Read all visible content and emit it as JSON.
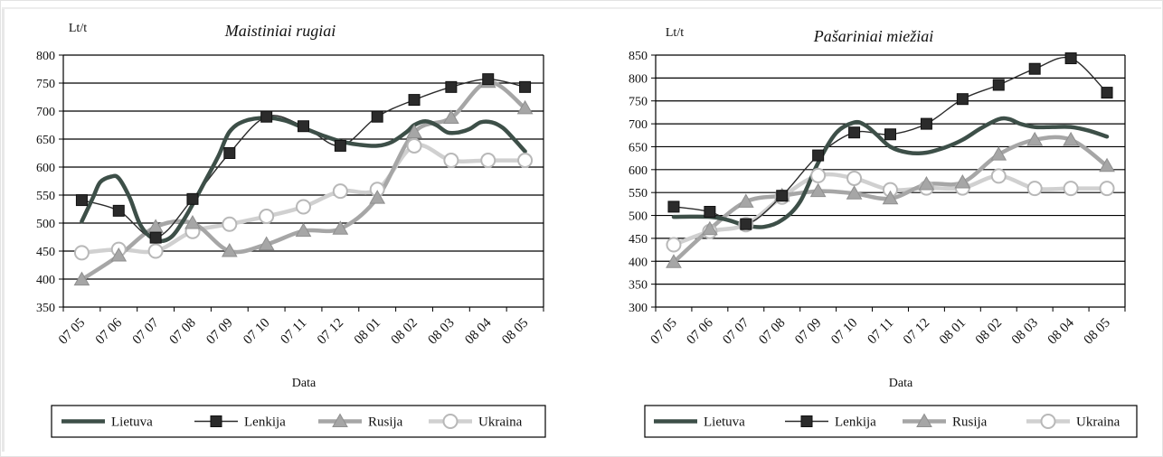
{
  "chart_data": [
    {
      "type": "line",
      "title": "Maistiniai rugiai",
      "ylabel": "Lt/t",
      "xlabel": "Data",
      "ylim": [
        350,
        800
      ],
      "yticks": [
        350,
        400,
        450,
        500,
        550,
        600,
        650,
        700,
        750,
        800
      ],
      "categories": [
        "07 05",
        "07 06",
        "07 07",
        "07 08",
        "07 09",
        "07 10",
        "07 11",
        "07 12",
        "08 01",
        "08 02",
        "08 03",
        "08 04",
        "08 05"
      ],
      "grid": "horizontal",
      "legend": "bottom",
      "series": [
        {
          "name": "Lietuva",
          "color": "#3d4f48",
          "marker": "none",
          "x": [
            0,
            0.3,
            0.5,
            0.8,
            1.0,
            1.3,
            1.6,
            2.0,
            2.4,
            2.8,
            3.3,
            3.7,
            4.0,
            4.4,
            5.0,
            5.5,
            6.0,
            6.5,
            7.0,
            7.5,
            8.0,
            8.4,
            8.8,
            9.0,
            9.3,
            9.6,
            9.9,
            10.2,
            10.5,
            10.8,
            11.1,
            11.4,
            11.7,
            12.0
          ],
          "values": [
            503,
            545,
            573,
            583,
            580,
            545,
            495,
            470,
            474,
            510,
            570,
            620,
            663,
            682,
            688,
            683,
            670,
            657,
            646,
            640,
            638,
            645,
            663,
            675,
            682,
            675,
            662,
            662,
            668,
            680,
            680,
            670,
            650,
            628
          ]
        },
        {
          "name": "Lenkija",
          "color": "#2b2b2b",
          "marker": "square",
          "x": [
            0,
            1,
            2,
            3,
            4,
            5,
            6,
            7,
            8,
            9,
            10,
            11,
            12
          ],
          "values": [
            541,
            522,
            474,
            543,
            625,
            690,
            673,
            638,
            690,
            720,
            743,
            757,
            743
          ]
        },
        {
          "name": "Rusija",
          "color": "#a6a6a6",
          "marker": "triangle",
          "x": [
            0,
            1,
            2,
            3,
            4,
            5,
            6,
            7,
            8,
            9,
            10,
            11,
            12
          ],
          "values": [
            399,
            442,
            493,
            500,
            450,
            462,
            486,
            490,
            545,
            662,
            688,
            752,
            705
          ]
        },
        {
          "name": "Ukraina",
          "color": "#d0d0d0",
          "marker": "circle",
          "x": [
            0,
            1,
            2,
            3,
            4,
            5,
            6,
            7,
            8,
            9,
            10,
            11,
            12
          ],
          "values": [
            447,
            453,
            450,
            485,
            498,
            512,
            529,
            557,
            560,
            638,
            612,
            612,
            612
          ]
        }
      ]
    },
    {
      "type": "line",
      "title": "Pašariniai miežiai",
      "ylabel": "Lt/t",
      "xlabel": "Data",
      "ylim": [
        300,
        850
      ],
      "yticks": [
        300,
        350,
        400,
        450,
        500,
        550,
        600,
        650,
        700,
        750,
        800,
        850
      ],
      "categories": [
        "07 05",
        "07 06",
        "07 07",
        "07 08",
        "07 09",
        "07 10",
        "07 11",
        "07 12",
        "08 01",
        "08 02",
        "08 03",
        "08 04",
        "08 05"
      ],
      "grid": "horizontal",
      "legend": "bottom",
      "series": [
        {
          "name": "Lietuva",
          "color": "#3d4f48",
          "marker": "none",
          "x": [
            0,
            1.0,
            1.5,
            2.0,
            2.5,
            3.0,
            3.5,
            4.0,
            4.5,
            5.0,
            5.3,
            5.6,
            6.0,
            6.5,
            7.0,
            7.5,
            8.0,
            8.5,
            9.0,
            9.3,
            9.6,
            10.0,
            10.5,
            11.0,
            11.5,
            12.0
          ],
          "values": [
            497,
            497,
            490,
            478,
            475,
            490,
            530,
            615,
            680,
            703,
            697,
            678,
            650,
            637,
            637,
            648,
            665,
            690,
            710,
            710,
            700,
            693,
            693,
            693,
            685,
            672
          ]
        },
        {
          "name": "Lenkija",
          "color": "#2b2b2b",
          "marker": "square",
          "x": [
            0,
            1,
            2,
            3,
            4,
            5,
            6,
            7,
            8,
            9,
            10,
            11,
            12
          ],
          "values": [
            519,
            508,
            481,
            543,
            631,
            681,
            677,
            700,
            754,
            785,
            820,
            843,
            768
          ]
        },
        {
          "name": "Rusija",
          "color": "#a6a6a6",
          "marker": "triangle",
          "x": [
            0,
            1,
            2,
            3,
            4,
            5,
            6,
            7,
            8,
            9,
            10,
            11,
            12
          ],
          "values": [
            398,
            470,
            530,
            543,
            553,
            548,
            537,
            568,
            572,
            633,
            665,
            665,
            608
          ]
        },
        {
          "name": "Ukraina",
          "color": "#d0d0d0",
          "marker": "circle",
          "x": [
            0,
            1,
            2,
            3,
            4,
            5,
            6,
            7,
            8,
            9,
            10,
            11,
            12
          ],
          "values": [
            436,
            465,
            480,
            540,
            587,
            581,
            556,
            560,
            560,
            586,
            559,
            559,
            559
          ]
        }
      ]
    }
  ]
}
